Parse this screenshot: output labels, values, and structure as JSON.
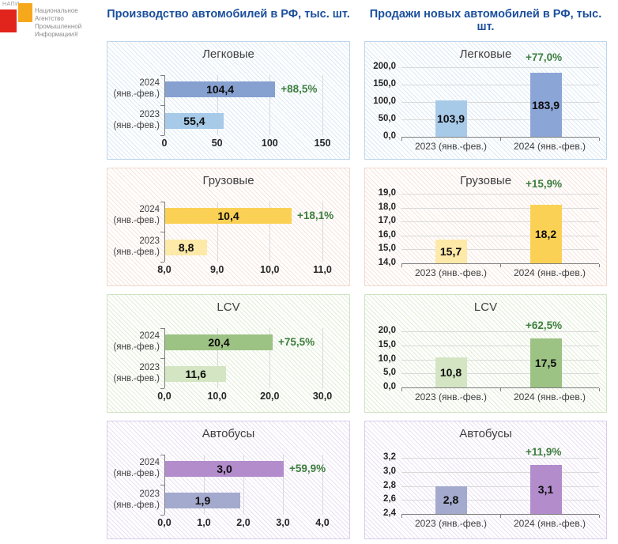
{
  "logo": {
    "acronym": "НАПИ",
    "name_lines": [
      "Национальное",
      "Агентство",
      "Промышленной",
      "Информации®"
    ],
    "red": "#E2251C",
    "orange": "#F6A81C"
  },
  "headers": {
    "production": "Производство  автомобилей  в РФ, тыс. шт.",
    "sales": "Продажи новых автомобилей в РФ, тыс. шт."
  },
  "colors": {
    "header_text": "#1B4F9C",
    "growth_text": "#3E7E3E",
    "gridline": "#D9D9D9",
    "axis": "#7F7F7F"
  },
  "chart_data": [
    {
      "panel": "Производство автомобилей в РФ, тыс. шт.",
      "type": "bar",
      "orientation": "horizontal",
      "title": "Легковые",
      "categories": [
        "2024 (янв.-фев.)",
        "2023 (янв.-фев.)"
      ],
      "values": [
        104.4,
        55.4
      ],
      "value_labels": [
        "104,4",
        "55,4"
      ],
      "growth_label": "+88,5%",
      "axis": {
        "min": 0,
        "max": 150,
        "tick_values": [
          0,
          50,
          100,
          150
        ],
        "tick_labels": [
          "0",
          "50",
          "100",
          "150"
        ]
      },
      "bar_colors": [
        "#86A0D0",
        "#A7CAE9"
      ],
      "theme": {
        "border": "#BDD6EB",
        "stripe": "#DCE9F5"
      }
    },
    {
      "panel": "Продажи новых автомобилей в РФ, тыс. шт.",
      "type": "bar",
      "orientation": "vertical",
      "title": "Легковые",
      "categories": [
        "2023 (янв.-фев.)",
        "2024 (янв.-фев.)"
      ],
      "values": [
        103.9,
        183.9
      ],
      "value_labels": [
        "103,9",
        "183,9"
      ],
      "growth_label": "+77,0%",
      "growth_placement": "top",
      "axis": {
        "min": 0,
        "max": 200,
        "tick_values": [
          0,
          50,
          100,
          150,
          200
        ],
        "tick_labels": [
          "0,0",
          "50,0",
          "100,0",
          "150,0",
          "200,0"
        ]
      },
      "bar_colors": [
        "#A7CAE9",
        "#8CA5D7"
      ],
      "theme": {
        "border": "#BDD6EB",
        "stripe": "#DCE9F5"
      }
    },
    {
      "panel": "Производство автомобилей в РФ, тыс. шт.",
      "type": "bar",
      "orientation": "horizontal",
      "title": "Грузовые",
      "categories": [
        "2024 (янв.-фев.)",
        "2023 (янв.-фев.)"
      ],
      "values": [
        10.4,
        8.8
      ],
      "value_labels": [
        "10,4",
        "8,8"
      ],
      "growth_label": "+18,1%",
      "axis": {
        "min": 8,
        "max": 11,
        "tick_values": [
          8,
          9,
          10,
          11
        ],
        "tick_labels": [
          "8,0",
          "9,0",
          "10,0",
          "11,0"
        ]
      },
      "bar_colors": [
        "#FBD155",
        "#FDE9A8"
      ],
      "theme": {
        "border": "#F2D8CF",
        "stripe": "#F7E3DB"
      }
    },
    {
      "panel": "Продажи новых автомобилей в РФ, тыс. шт.",
      "type": "bar",
      "orientation": "vertical",
      "title": "Грузовые",
      "categories": [
        "2023 (янв.-фев.)",
        "2024 (янв.-фев.)"
      ],
      "values": [
        15.7,
        18.2
      ],
      "value_labels": [
        "15,7",
        "18,2"
      ],
      "growth_label": "+15,9%",
      "growth_placement": "top",
      "axis": {
        "min": 14,
        "max": 19,
        "tick_values": [
          14,
          15,
          16,
          17,
          18,
          19
        ],
        "tick_labels": [
          "14,0",
          "15,0",
          "16,0",
          "17,0",
          "18,0",
          "19,0"
        ]
      },
      "bar_colors": [
        "#FDE9A8",
        "#FBD155"
      ],
      "theme": {
        "border": "#F2D8CF",
        "stripe": "#F7E3DB"
      }
    },
    {
      "panel": "Производство автомобилей в РФ, тыс. шт.",
      "type": "bar",
      "orientation": "horizontal",
      "title": "LCV",
      "categories": [
        "2024 (янв.-фев.)",
        "2023 (янв.-фев.)"
      ],
      "values": [
        20.4,
        11.6
      ],
      "value_labels": [
        "20,4",
        "11,6"
      ],
      "growth_label": "+75,5%",
      "axis": {
        "min": 0,
        "max": 30,
        "tick_values": [
          0,
          10,
          20,
          30
        ],
        "tick_labels": [
          "0,0",
          "10,0",
          "20,0",
          "30,0"
        ]
      },
      "bar_colors": [
        "#9CC284",
        "#D3E5C3"
      ],
      "theme": {
        "border": "#CFE4C3",
        "stripe": "#E0EDD4"
      }
    },
    {
      "panel": "Продажи новых автомобилей в РФ, тыс. шт.",
      "type": "bar",
      "orientation": "vertical",
      "title": "LCV",
      "categories": [
        "2023 (янв.-фев.)",
        "2024 (янв.-фев.)"
      ],
      "values": [
        10.8,
        17.5
      ],
      "value_labels": [
        "10,8",
        "17,5"
      ],
      "growth_label": "+62,5%",
      "growth_placement": "second",
      "axis": {
        "min": 0,
        "max": 20,
        "tick_values": [
          0,
          5,
          10,
          15,
          20
        ],
        "tick_labels": [
          "0,0",
          "5,0",
          "10,0",
          "15,0",
          "20,0"
        ]
      },
      "bar_colors": [
        "#D3E5C3",
        "#9CC284"
      ],
      "theme": {
        "border": "#CFE4C3",
        "stripe": "#E0EDD4"
      }
    },
    {
      "panel": "Производство автомобилей в РФ, тыс. шт.",
      "type": "bar",
      "orientation": "horizontal",
      "title": "Автобусы",
      "categories": [
        "2024 (янв.-фев.)",
        "2023 (янв.-фев.)"
      ],
      "values": [
        3.0,
        1.9
      ],
      "value_labels": [
        "3,0",
        "1,9"
      ],
      "growth_label": "+59,9%",
      "axis": {
        "min": 0,
        "max": 4,
        "tick_values": [
          0,
          1,
          2,
          3,
          4
        ],
        "tick_labels": [
          "0,0",
          "1,0",
          "2,0",
          "3,0",
          "4,0"
        ]
      },
      "bar_colors": [
        "#B28CCB",
        "#A3AACD"
      ],
      "theme": {
        "border": "#DACBE9",
        "stripe": "#E9DFF2"
      }
    },
    {
      "panel": "Продажи новых автомобилей в РФ, тыс. шт.",
      "type": "bar",
      "orientation": "vertical",
      "title": "Автобусы",
      "categories": [
        "2023 (янв.-фев.)",
        "2024 (янв.-фев.)"
      ],
      "values": [
        2.8,
        3.1
      ],
      "value_labels": [
        "2,8",
        "3,1"
      ],
      "growth_label": "+11,9%",
      "growth_placement": "second",
      "axis": {
        "min": 2.4,
        "max": 3.2,
        "tick_values": [
          2.4,
          2.6,
          2.8,
          3.0,
          3.2
        ],
        "tick_labels": [
          "2,4",
          "2,6",
          "2,8",
          "3,0",
          "3,2"
        ]
      },
      "bar_colors": [
        "#A3AACD",
        "#B28CCB"
      ],
      "theme": {
        "border": "#DACBE9",
        "stripe": "#E9DFF2"
      }
    }
  ]
}
